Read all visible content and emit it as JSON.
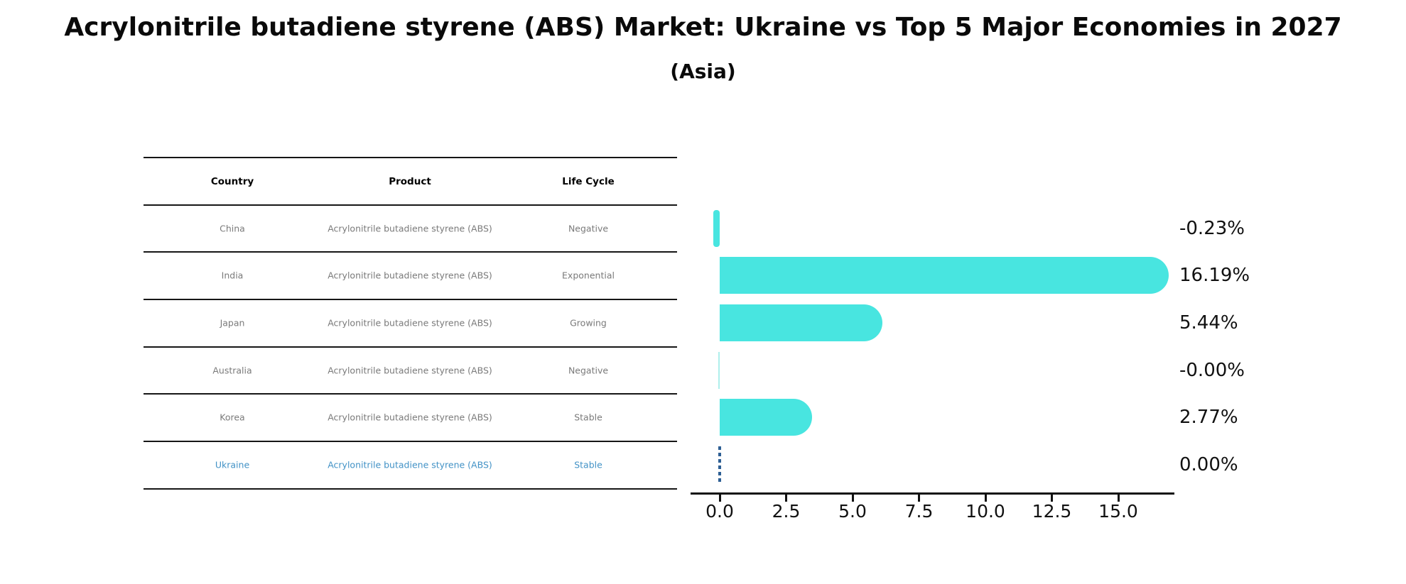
{
  "title": "Acrylonitrile butadiene styrene (ABS) Market: Ukraine vs Top 5 Major Economies in 2027",
  "subtitle": "(Asia)",
  "table": {
    "headers": [
      "Country",
      "Product",
      "Life Cycle"
    ],
    "rows": [
      {
        "country": "China",
        "product": "Acrylonitrile butadiene styrene (ABS)",
        "life_cycle": "Negative",
        "highlight": false
      },
      {
        "country": "India",
        "product": "Acrylonitrile butadiene styrene (ABS)",
        "life_cycle": "Exponential",
        "highlight": false
      },
      {
        "country": "Japan",
        "product": "Acrylonitrile butadiene styrene (ABS)",
        "life_cycle": "Growing",
        "highlight": false
      },
      {
        "country": "Australia",
        "product": "Acrylonitrile butadiene styrene (ABS)",
        "life_cycle": "Negative",
        "highlight": false
      },
      {
        "country": "Korea",
        "product": "Acrylonitrile butadiene styrene (ABS)",
        "life_cycle": "Stable",
        "highlight": false
      },
      {
        "country": "Ukraine",
        "product": "Acrylonitrile butadiene styrene (ABS)",
        "life_cycle": "Stable",
        "highlight": true
      }
    ]
  },
  "chart_data": {
    "type": "bar",
    "orientation": "horizontal",
    "title": "Acrylonitrile butadiene styrene (ABS) Market: Ukraine vs Top 5 Major Economies in 2027 (Asia)",
    "categories": [
      "China",
      "India",
      "Japan",
      "Australia",
      "Korea",
      "Ukraine"
    ],
    "values": [
      -0.23,
      16.19,
      5.44,
      -0.0,
      2.77,
      0.0
    ],
    "value_labels": [
      "-0.23%",
      "16.19%",
      "5.44%",
      "-0.00%",
      "2.77%",
      "0.00%"
    ],
    "xticks": [
      0.0,
      2.5,
      5.0,
      7.5,
      10.0,
      12.5,
      15.0
    ],
    "xtick_labels": [
      "0.0",
      "2.5",
      "5.0",
      "7.5",
      "10.0",
      "12.5",
      "15.0"
    ],
    "xlim": [
      -1.1,
      17.1
    ],
    "grid": false,
    "legend": false,
    "bar_color": "#48E5E0",
    "zero_hairline_color": "#AEEFEC",
    "highlight_line_color": "#2E5F94",
    "highlight_text_color": "#4292C6"
  }
}
